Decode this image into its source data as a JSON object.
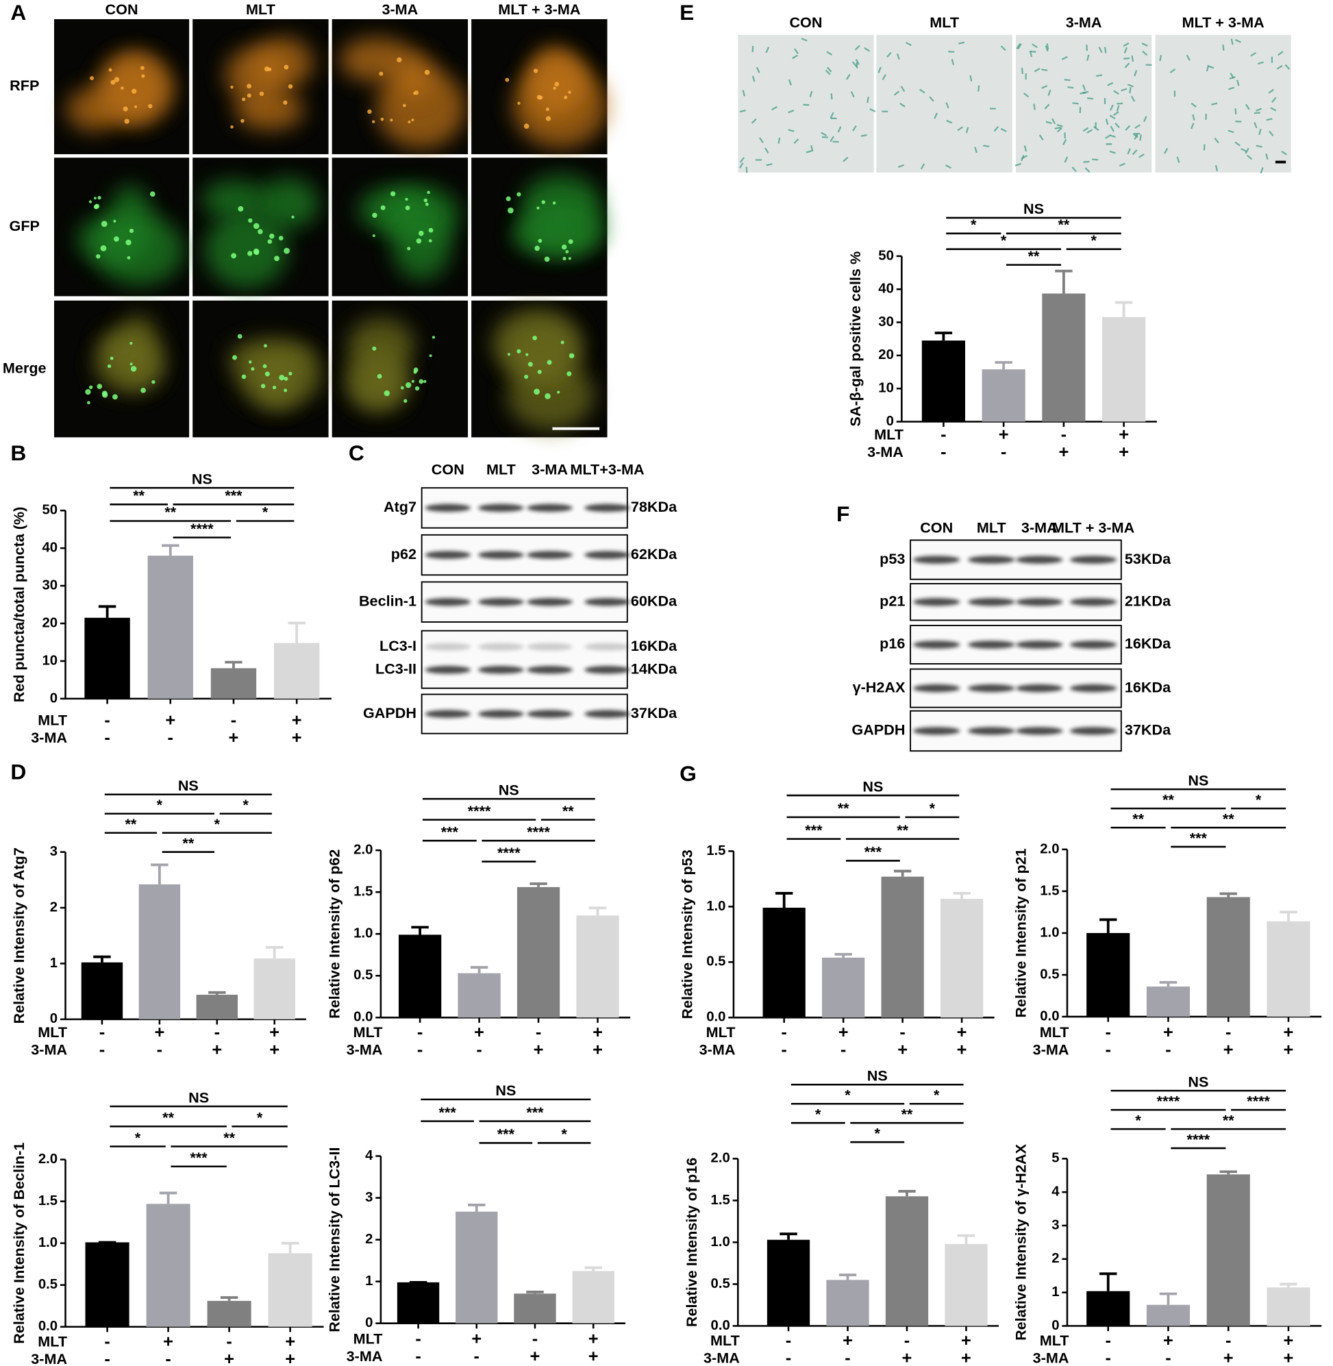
{
  "panel_labels": [
    "A",
    "B",
    "C",
    "D",
    "E",
    "F",
    "G"
  ],
  "treatments": [
    {
      "name": "MLT",
      "signs": [
        "-",
        "+",
        "-",
        "+"
      ]
    },
    {
      "name": "3-MA",
      "signs": [
        "-",
        "-",
        "+",
        "+"
      ]
    }
  ],
  "panel_a": {
    "columns": [
      "CON",
      "MLT",
      "3-MA",
      "MLT + 3-MA"
    ],
    "rows": [
      "RFP",
      "GFP",
      "Merge"
    ]
  },
  "panel_e_images": {
    "columns": [
      "CON",
      "MLT",
      "3-MA",
      "MLT  + 3-MA"
    ]
  },
  "blot_c": {
    "columns": [
      "CON",
      "MLT",
      "3-MA",
      "MLT+3-MA"
    ],
    "rows": [
      {
        "labels": [
          "Atg7"
        ],
        "sizes": [
          "78KDa"
        ]
      },
      {
        "labels": [
          "p62"
        ],
        "sizes": [
          "62KDa"
        ]
      },
      {
        "labels": [
          "Beclin-1"
        ],
        "sizes": [
          "60KDa"
        ]
      },
      {
        "labels": [
          "LC3-I",
          "LC3-II"
        ],
        "sizes": [
          "16KDa",
          "14KDa"
        ]
      },
      {
        "labels": [
          "GAPDH"
        ],
        "sizes": [
          "37KDa"
        ]
      }
    ]
  },
  "blot_f": {
    "columns": [
      "CON",
      "MLT",
      "3-MA",
      "MLT + 3-MA"
    ],
    "rows": [
      {
        "labels": [
          "p53"
        ],
        "sizes": [
          "53KDa"
        ]
      },
      {
        "labels": [
          "p21"
        ],
        "sizes": [
          "21KDa"
        ]
      },
      {
        "labels": [
          "p16"
        ],
        "sizes": [
          "16KDa"
        ]
      },
      {
        "labels": [
          "γ-H2AX"
        ],
        "sizes": [
          "16KDa"
        ]
      },
      {
        "labels": [
          "GAPDH"
        ],
        "sizes": [
          "37KDa"
        ]
      }
    ]
  },
  "chart_data": [
    {
      "type": "bar",
      "ylabel": "Red puncta/total puncta (%)",
      "values": [
        21.5,
        38,
        8.1,
        14.8
      ],
      "errors": [
        3,
        2.7,
        1.6,
        5.3
      ],
      "colors": [
        "#000000",
        "#a3a3ab",
        "#808080",
        "#d9d9d9"
      ],
      "ylim": [
        0,
        50
      ],
      "yticks": [
        0,
        10,
        20,
        30,
        40,
        50
      ],
      "comparisons": [
        {
          "groups": [
            0,
            3
          ],
          "label": "NS"
        },
        {
          "groups": [
            0,
            1
          ],
          "label": "**"
        },
        {
          "groups": [
            1,
            3
          ],
          "label": "***"
        },
        {
          "groups": [
            0,
            2
          ],
          "label": "**"
        },
        {
          "groups": [
            2,
            3
          ],
          "label": "*"
        },
        {
          "groups": [
            1,
            2
          ],
          "label": "****"
        }
      ]
    },
    {
      "type": "bar",
      "ylabel": "Relative Intensity of Atg7",
      "values": [
        1.02,
        2.42,
        0.44,
        1.09
      ],
      "errors": [
        0.1,
        0.35,
        0.04,
        0.2
      ],
      "colors": [
        "#000000",
        "#a3a3ab",
        "#808080",
        "#d9d9d9"
      ],
      "ylim": [
        0,
        3
      ],
      "yticks": [
        0,
        1,
        2,
        3
      ],
      "comparisons": [
        {
          "groups": [
            0,
            3
          ],
          "label": "NS"
        },
        {
          "groups": [
            0,
            2
          ],
          "label": "*"
        },
        {
          "groups": [
            2,
            3
          ],
          "label": "*"
        },
        {
          "groups": [
            0,
            1
          ],
          "label": "**"
        },
        {
          "groups": [
            1,
            3
          ],
          "label": "*"
        },
        {
          "groups": [
            1,
            2
          ],
          "label": "**"
        }
      ]
    },
    {
      "type": "bar",
      "ylabel": "Relative Intensity of p62",
      "values": [
        0.99,
        0.53,
        1.56,
        1.22
      ],
      "errors": [
        0.09,
        0.07,
        0.04,
        0.09
      ],
      "colors": [
        "#000000",
        "#a3a3ab",
        "#808080",
        "#d9d9d9"
      ],
      "ylim": [
        0,
        2
      ],
      "yticks": [
        {
          "value": 0,
          "label": "0.0"
        },
        0.5,
        {
          "value": 1,
          "label": "1.0"
        },
        1.5,
        {
          "value": 2,
          "label": "2.0"
        }
      ],
      "comparisons": [
        {
          "groups": [
            0,
            3
          ],
          "label": "NS"
        },
        {
          "groups": [
            0,
            2
          ],
          "label": "****"
        },
        {
          "groups": [
            2,
            3
          ],
          "label": "**"
        },
        {
          "groups": [
            0,
            1
          ],
          "label": "***"
        },
        {
          "groups": [
            1,
            3
          ],
          "label": "****"
        },
        {
          "groups": [
            1,
            2
          ],
          "label": "****"
        }
      ]
    },
    {
      "type": "bar",
      "ylabel": "Relative Intensity of Beclin-1",
      "values": [
        1.01,
        1.47,
        0.31,
        0.88
      ],
      "errors": [
        0,
        0.13,
        0.04,
        0.12
      ],
      "colors": [
        "#000000",
        "#a3a3ab",
        "#808080",
        "#d9d9d9"
      ],
      "ylim": [
        0,
        2
      ],
      "yticks": [
        {
          "value": 0,
          "label": "0.0"
        },
        0.5,
        {
          "value": 1,
          "label": "1.0"
        },
        1.5,
        {
          "value": 2,
          "label": "2.0"
        }
      ],
      "comparisons": [
        {
          "groups": [
            0,
            3
          ],
          "label": "NS"
        },
        {
          "groups": [
            0,
            2
          ],
          "label": "**"
        },
        {
          "groups": [
            2,
            3
          ],
          "label": "*"
        },
        {
          "groups": [
            0,
            1
          ],
          "label": "*"
        },
        {
          "groups": [
            1,
            3
          ],
          "label": "**"
        },
        {
          "groups": [
            1,
            2
          ],
          "label": "***"
        }
      ]
    },
    {
      "type": "bar",
      "ylabel": "Relative Intensity of LC3-II",
      "values": [
        0.98,
        2.67,
        0.71,
        1.25
      ],
      "errors": [
        0,
        0.16,
        0.04,
        0.08
      ],
      "colors": [
        "#000000",
        "#a3a3ab",
        "#808080",
        "#d9d9d9"
      ],
      "ylim": [
        0,
        4
      ],
      "yticks": [
        0,
        1,
        2,
        3,
        4
      ],
      "comparisons": [
        {
          "groups": [
            0,
            3
          ],
          "label": "NS"
        },
        {
          "groups": [
            0,
            1
          ],
          "label": "***"
        },
        {
          "groups": [
            1,
            3
          ],
          "label": "***"
        },
        {
          "groups": [
            1,
            2
          ],
          "label": "***"
        },
        {
          "groups": [
            2,
            3
          ],
          "label": "*"
        }
      ]
    },
    {
      "type": "bar",
      "ylabel": "SA-β-gal positive cells %",
      "values": [
        24.5,
        15.8,
        38.7,
        31.6
      ],
      "errors": [
        2.3,
        2.1,
        6.8,
        4.4
      ],
      "colors": [
        "#000000",
        "#a3a3ab",
        "#808080",
        "#d9d9d9"
      ],
      "ylim": [
        0,
        50
      ],
      "yticks": [
        0,
        10,
        20,
        30,
        40,
        50
      ],
      "comparisons": [
        {
          "groups": [
            0,
            3
          ],
          "label": "NS"
        },
        {
          "groups": [
            0,
            1
          ],
          "label": "*"
        },
        {
          "groups": [
            1,
            3
          ],
          "label": "**"
        },
        {
          "groups": [
            0,
            2
          ],
          "label": "*"
        },
        {
          "groups": [
            2,
            3
          ],
          "label": "*"
        },
        {
          "groups": [
            1,
            2
          ],
          "label": "**"
        }
      ]
    },
    {
      "type": "bar",
      "ylabel": "Relative Intensity of p53",
      "values": [
        0.99,
        0.54,
        1.27,
        1.07
      ],
      "errors": [
        0.13,
        0.03,
        0.05,
        0.05
      ],
      "colors": [
        "#000000",
        "#a3a3ab",
        "#808080",
        "#d9d9d9"
      ],
      "ylim": [
        0,
        1.5
      ],
      "yticks": [
        {
          "value": 0,
          "label": "0.0"
        },
        0.5,
        {
          "value": 1,
          "label": "1.0"
        },
        1.5
      ],
      "comparisons": [
        {
          "groups": [
            0,
            3
          ],
          "label": "NS"
        },
        {
          "groups": [
            0,
            2
          ],
          "label": "**"
        },
        {
          "groups": [
            2,
            3
          ],
          "label": "*"
        },
        {
          "groups": [
            0,
            1
          ],
          "label": "***"
        },
        {
          "groups": [
            1,
            3
          ],
          "label": "**"
        },
        {
          "groups": [
            1,
            2
          ],
          "label": "***"
        }
      ]
    },
    {
      "type": "bar",
      "ylabel": "Relative Intensity of p21",
      "values": [
        1.0,
        0.36,
        1.43,
        1.14
      ],
      "errors": [
        0.16,
        0.05,
        0.04,
        0.11
      ],
      "colors": [
        "#000000",
        "#a3a3ab",
        "#808080",
        "#d9d9d9"
      ],
      "ylim": [
        0,
        2
      ],
      "yticks": [
        {
          "value": 0,
          "label": "0.0"
        },
        0.5,
        {
          "value": 1,
          "label": "1.0"
        },
        1.5,
        {
          "value": 2,
          "label": "2.0"
        }
      ],
      "comparisons": [
        {
          "groups": [
            0,
            3
          ],
          "label": "NS"
        },
        {
          "groups": [
            0,
            2
          ],
          "label": "**"
        },
        {
          "groups": [
            2,
            3
          ],
          "label": "*"
        },
        {
          "groups": [
            0,
            1
          ],
          "label": "**"
        },
        {
          "groups": [
            1,
            3
          ],
          "label": "**"
        },
        {
          "groups": [
            1,
            2
          ],
          "label": "***"
        }
      ]
    },
    {
      "type": "bar",
      "ylabel": "Relative Intensity of p16",
      "values": [
        1.03,
        0.55,
        1.55,
        0.98
      ],
      "errors": [
        0.07,
        0.06,
        0.06,
        0.1
      ],
      "colors": [
        "#000000",
        "#a3a3ab",
        "#808080",
        "#d9d9d9"
      ],
      "ylim": [
        0,
        2
      ],
      "yticks": [
        {
          "value": 0,
          "label": "0.0"
        },
        0.5,
        {
          "value": 1,
          "label": "1.0"
        },
        1.5,
        {
          "value": 2,
          "label": "2.0"
        }
      ],
      "comparisons": [
        {
          "groups": [
            0,
            3
          ],
          "label": "NS"
        },
        {
          "groups": [
            0,
            2
          ],
          "label": "*"
        },
        {
          "groups": [
            2,
            3
          ],
          "label": "*"
        },
        {
          "groups": [
            0,
            1
          ],
          "label": "*"
        },
        {
          "groups": [
            1,
            3
          ],
          "label": "**"
        },
        {
          "groups": [
            1,
            2
          ],
          "label": "*"
        }
      ]
    },
    {
      "type": "bar",
      "ylabel": "Relative Intensity of γ-H2AX",
      "values": [
        1.04,
        0.63,
        4.53,
        1.15
      ],
      "errors": [
        0.52,
        0.33,
        0.08,
        0.1
      ],
      "colors": [
        "#000000",
        "#a3a3ab",
        "#808080",
        "#d9d9d9"
      ],
      "ylim": [
        0,
        5
      ],
      "yticks": [
        0,
        1,
        2,
        3,
        4,
        5
      ],
      "comparisons": [
        {
          "groups": [
            0,
            3
          ],
          "label": "NS"
        },
        {
          "groups": [
            0,
            2
          ],
          "label": "****"
        },
        {
          "groups": [
            2,
            3
          ],
          "label": "****"
        },
        {
          "groups": [
            0,
            1
          ],
          "label": "*"
        },
        {
          "groups": [
            1,
            3
          ],
          "label": "**"
        },
        {
          "groups": [
            1,
            2
          ],
          "label": "****"
        }
      ]
    }
  ]
}
